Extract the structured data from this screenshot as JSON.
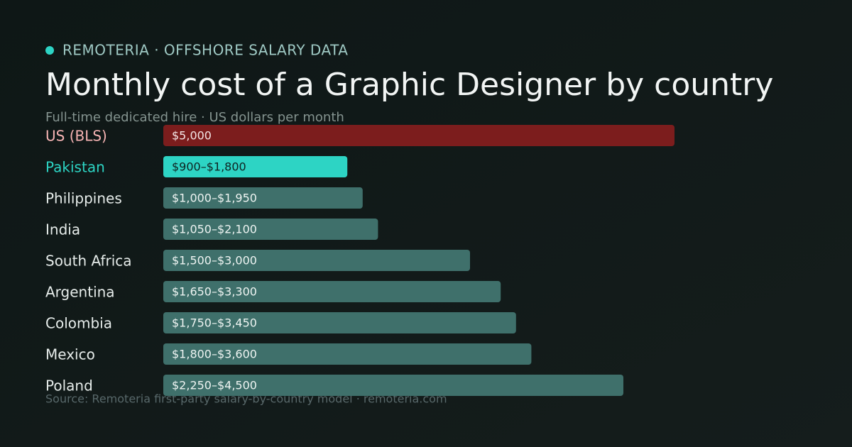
{
  "chart_data": {
    "type": "bar",
    "orientation": "horizontal",
    "kicker": "REMOTERIA · OFFSHORE SALARY DATA",
    "title": "Monthly cost of a Graphic Designer by country",
    "subtitle": "Full-time dedicated hire · US dollars per month",
    "source": "Source: Remoteria first-party salary-by-country model · remoteria.com",
    "categories": [
      "US (BLS)",
      "Pakistan",
      "Philippines",
      "India",
      "South Africa",
      "Argentina",
      "Colombia",
      "Mexico",
      "Poland"
    ],
    "values": [
      5000,
      1800,
      1950,
      2100,
      3000,
      3300,
      3450,
      3600,
      4500
    ],
    "value_labels": [
      "$5,000",
      "$900–$1,800",
      "$1,000–$1,950",
      "$1,050–$2,100",
      "$1,500–$3,000",
      "$1,650–$3,300",
      "$1,750–$3,450",
      "$1,800–$3,600",
      "$2,250–$4,500"
    ],
    "colors": [
      "#7c1d1d",
      "#2dd4c4",
      "#3f706b",
      "#3f706b",
      "#3f706b",
      "#3f706b",
      "#3f706b",
      "#3f706b",
      "#3f706b"
    ],
    "category_label_colors": [
      "#f7b4b4",
      "#2dd4c4",
      "#e6ecea",
      "#e6ecea",
      "#e6ecea",
      "#e6ecea",
      "#e6ecea",
      "#e6ecea",
      "#e6ecea"
    ],
    "value_label_colors": [
      "#f3e6e6",
      "#0f2422",
      "#eef4f2",
      "#eef4f2",
      "#eef4f2",
      "#eef4f2",
      "#eef4f2",
      "#eef4f2",
      "#eef4f2"
    ],
    "xlim": [
      0,
      5000
    ]
  }
}
